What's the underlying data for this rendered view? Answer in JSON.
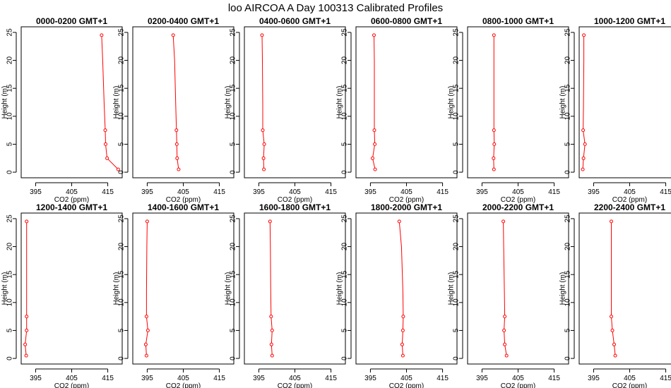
{
  "figure": {
    "title": "loo AIRCOA A  Day 100313  Calibrated Profiles"
  },
  "colors": {
    "line": "#ff0000",
    "axis": "#000000",
    "background": "#ffffff"
  },
  "chart_data": [
    {
      "type": "line",
      "title": "0000-0200 GMT+1",
      "xlabel": "CO2 (ppm)",
      "ylabel": "Height (m)",
      "xlim": [
        391,
        419
      ],
      "ylim": [
        -1,
        26
      ],
      "xticks": [
        395,
        405,
        415
      ],
      "yticks": [
        0,
        5,
        10,
        15,
        20,
        25
      ],
      "series": [
        {
          "x": [
            417.9,
            414.8,
            414.4,
            414.3,
            414.0,
            413.6,
            413.3
          ],
          "y": [
            0.5,
            2.5,
            5,
            7.5,
            12,
            20,
            24.5
          ]
        }
      ]
    },
    {
      "type": "line",
      "title": "0200-0400 GMT+1",
      "xlabel": "CO2 (ppm)",
      "ylabel": "Height (m)",
      "xlim": [
        391,
        419
      ],
      "ylim": [
        -1,
        26
      ],
      "xticks": [
        395,
        405,
        415
      ],
      "yticks": [
        0,
        5,
        10,
        15,
        20,
        25
      ],
      "series": [
        {
          "x": [
            403.7,
            403.3,
            403.2,
            403.1,
            402.9,
            402.6,
            402.2
          ],
          "y": [
            0.5,
            2.5,
            5,
            7.5,
            12,
            20,
            24.5
          ]
        }
      ]
    },
    {
      "type": "line",
      "title": "0400-0600 GMT+1",
      "xlabel": "CO2 (ppm)",
      "ylabel": "Height (m)",
      "xlim": [
        391,
        419
      ],
      "ylim": [
        -1,
        26
      ],
      "xticks": [
        395,
        405,
        415
      ],
      "yticks": [
        0,
        5,
        10,
        15,
        20,
        25
      ],
      "series": [
        {
          "x": [
            396.4,
            396.3,
            396.5,
            396.1,
            396.1,
            396.0,
            395.9
          ],
          "y": [
            0.5,
            2.5,
            5,
            7.5,
            12,
            20,
            24.5
          ]
        }
      ]
    },
    {
      "type": "line",
      "title": "0600-0800 GMT+1",
      "xlabel": "CO2 (ppm)",
      "ylabel": "Height (m)",
      "xlim": [
        391,
        419
      ],
      "ylim": [
        -1,
        26
      ],
      "xticks": [
        395,
        405,
        415
      ],
      "yticks": [
        0,
        5,
        10,
        15,
        20,
        25
      ],
      "series": [
        {
          "x": [
            396.3,
            395.6,
            396.2,
            396.1,
            396.1,
            396.1,
            396.0
          ],
          "y": [
            0.5,
            2.5,
            5,
            7.5,
            12,
            20,
            24.5
          ]
        }
      ]
    },
    {
      "type": "line",
      "title": "0800-1000 GMT+1",
      "xlabel": "CO2 (ppm)",
      "ylabel": "Height (m)",
      "xlim": [
        391,
        419
      ],
      "ylim": [
        -1,
        26
      ],
      "xticks": [
        395,
        405,
        415
      ],
      "yticks": [
        0,
        5,
        10,
        15,
        20,
        25
      ],
      "series": [
        {
          "x": [
            398.3,
            398.2,
            398.4,
            398.3,
            398.3,
            398.3,
            398.3
          ],
          "y": [
            0.5,
            2.5,
            5,
            7.5,
            12,
            20,
            24.5
          ]
        }
      ]
    },
    {
      "type": "line",
      "title": "1000-1200 GMT+1",
      "xlabel": "CO2 (ppm)",
      "ylabel": "Height (m)",
      "xlim": [
        391,
        419
      ],
      "ylim": [
        -1,
        26
      ],
      "xticks": [
        395,
        405,
        415
      ],
      "yticks": [
        0,
        5,
        10,
        15,
        20,
        25
      ],
      "series": [
        {
          "x": [
            392.0,
            392.2,
            392.6,
            392.1,
            392.2,
            392.3,
            392.3
          ],
          "y": [
            0.5,
            2.5,
            5,
            7.5,
            12,
            20,
            24.5
          ]
        }
      ]
    },
    {
      "type": "line",
      "title": "1200-1400 GMT+1",
      "xlabel": "CO2 (ppm)",
      "ylabel": "Height (m)",
      "xlim": [
        391,
        419
      ],
      "ylim": [
        -1,
        26
      ],
      "xticks": [
        395,
        405,
        415
      ],
      "yticks": [
        0,
        5,
        10,
        15,
        20,
        25
      ],
      "series": [
        {
          "x": [
            392.4,
            392.1,
            392.5,
            392.5,
            392.5,
            392.5,
            392.5
          ],
          "y": [
            0.5,
            2.5,
            5,
            7.5,
            12,
            20,
            24.5
          ]
        }
      ]
    },
    {
      "type": "line",
      "title": "1400-1600 GMT+1",
      "xlabel": "CO2 (ppm)",
      "ylabel": "Height (m)",
      "xlim": [
        391,
        419
      ],
      "ylim": [
        -1,
        26
      ],
      "xticks": [
        395,
        405,
        415
      ],
      "yticks": [
        0,
        5,
        10,
        15,
        20,
        25
      ],
      "series": [
        {
          "x": [
            394.8,
            394.6,
            395.2,
            394.8,
            394.8,
            394.9,
            395.0
          ],
          "y": [
            0.5,
            2.5,
            5,
            7.5,
            12,
            20,
            24.5
          ]
        }
      ]
    },
    {
      "type": "line",
      "title": "1600-1800 GMT+1",
      "xlabel": "CO2 (ppm)",
      "ylabel": "Height (m)",
      "xlim": [
        391,
        419
      ],
      "ylim": [
        -1,
        26
      ],
      "xticks": [
        395,
        405,
        415
      ],
      "yticks": [
        0,
        5,
        10,
        15,
        20,
        25
      ],
      "series": [
        {
          "x": [
            398.7,
            398.5,
            398.7,
            398.4,
            398.3,
            398.2,
            398.1
          ],
          "y": [
            0.5,
            2.5,
            5,
            7.5,
            12,
            20,
            24.5
          ]
        }
      ]
    },
    {
      "type": "line",
      "title": "1800-2000 GMT+1",
      "xlabel": "CO2 (ppm)",
      "ylabel": "Height (m)",
      "xlim": [
        391,
        419
      ],
      "ylim": [
        -1,
        26
      ],
      "xticks": [
        395,
        405,
        415
      ],
      "yticks": [
        0,
        5,
        10,
        15,
        20,
        25
      ],
      "series": [
        {
          "x": [
            404.0,
            403.8,
            404.0,
            404.1,
            404.0,
            403.6,
            403.0
          ],
          "y": [
            0.5,
            2.5,
            5,
            7.5,
            12,
            20,
            24.5
          ]
        }
      ]
    },
    {
      "type": "line",
      "title": "2000-2200 GMT+1",
      "xlabel": "CO2 (ppm)",
      "ylabel": "Height (m)",
      "xlim": [
        391,
        419
      ],
      "ylim": [
        -1,
        26
      ],
      "xticks": [
        395,
        405,
        415
      ],
      "yticks": [
        0,
        5,
        10,
        15,
        20,
        25
      ],
      "series": [
        {
          "x": [
            401.8,
            401.3,
            401.1,
            401.3,
            401.2,
            401.0,
            400.9
          ],
          "y": [
            0.5,
            2.5,
            5,
            7.5,
            12,
            20,
            24.5
          ]
        }
      ]
    },
    {
      "type": "line",
      "title": "2200-2400 GMT+1",
      "xlabel": "CO2 (ppm)",
      "ylabel": "Height (m)",
      "xlim": [
        391,
        419
      ],
      "ylim": [
        -1,
        26
      ],
      "xticks": [
        395,
        405,
        415
      ],
      "yticks": [
        0,
        5,
        10,
        15,
        20,
        25
      ],
      "series": [
        {
          "x": [
            401.0,
            400.7,
            400.2,
            399.9,
            399.9,
            399.9,
            399.9
          ],
          "y": [
            0.5,
            2.5,
            5,
            7.5,
            12,
            20,
            24.5
          ]
        }
      ]
    }
  ]
}
